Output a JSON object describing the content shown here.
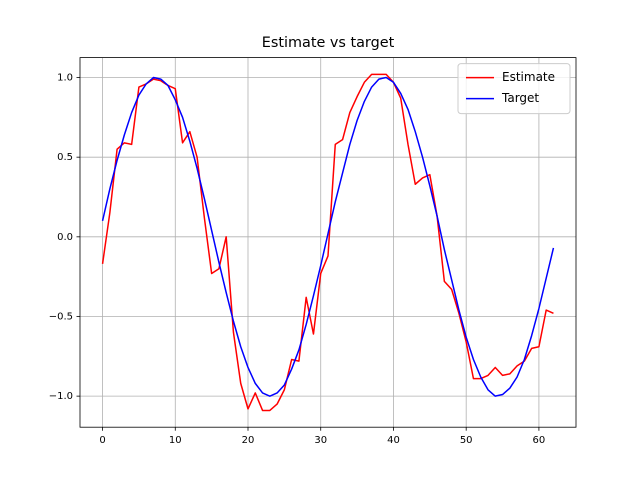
{
  "chart_data": {
    "type": "line",
    "title": "Estimate vs target",
    "x": [
      0,
      1,
      2,
      3,
      4,
      5,
      6,
      7,
      8,
      9,
      10,
      11,
      12,
      13,
      14,
      15,
      16,
      17,
      18,
      19,
      20,
      21,
      22,
      23,
      24,
      25,
      26,
      27,
      28,
      29,
      30,
      31,
      32,
      33,
      34,
      35,
      36,
      37,
      38,
      39,
      40,
      41,
      42,
      43,
      44,
      45,
      46,
      47,
      48,
      49,
      50,
      51,
      52,
      53,
      54,
      55,
      56,
      57,
      58,
      59,
      60,
      61,
      62
    ],
    "series": [
      {
        "name": "Estimate",
        "color": "#ff0000",
        "values": [
          -0.17,
          0.15,
          0.55,
          0.59,
          0.58,
          0.94,
          0.96,
          0.99,
          0.98,
          0.95,
          0.93,
          0.59,
          0.66,
          0.5,
          0.12,
          -0.23,
          -0.2,
          0.0,
          -0.6,
          -0.92,
          -1.08,
          -0.98,
          -1.09,
          -1.09,
          -1.05,
          -0.96,
          -0.77,
          -0.78,
          -0.38,
          -0.61,
          -0.23,
          -0.12,
          0.58,
          0.61,
          0.78,
          0.88,
          0.97,
          1.02,
          1.02,
          1.02,
          0.97,
          0.87,
          0.58,
          0.33,
          0.37,
          0.39,
          0.13,
          -0.28,
          -0.33,
          -0.48,
          -0.66,
          -0.89,
          -0.89,
          -0.87,
          -0.82,
          -0.87,
          -0.86,
          -0.81,
          -0.78,
          -0.7,
          -0.69,
          -0.46,
          -0.48
        ]
      },
      {
        "name": "Target",
        "color": "#0000ff",
        "values": [
          0.1,
          0.3,
          0.48,
          0.64,
          0.78,
          0.89,
          0.96,
          1.0,
          0.99,
          0.95,
          0.86,
          0.75,
          0.6,
          0.43,
          0.24,
          0.04,
          -0.16,
          -0.35,
          -0.53,
          -0.69,
          -0.82,
          -0.92,
          -0.98,
          -1.0,
          -0.98,
          -0.93,
          -0.83,
          -0.71,
          -0.55,
          -0.37,
          -0.18,
          0.02,
          0.22,
          0.4,
          0.58,
          0.73,
          0.85,
          0.94,
          0.99,
          1.0,
          0.97,
          0.9,
          0.8,
          0.66,
          0.5,
          0.32,
          0.13,
          -0.08,
          -0.27,
          -0.46,
          -0.63,
          -0.77,
          -0.88,
          -0.96,
          -1.0,
          -0.99,
          -0.95,
          -0.88,
          -0.77,
          -0.62,
          -0.45,
          -0.26,
          -0.07
        ]
      }
    ],
    "xlim": [
      -3.1,
      65.1
    ],
    "ylim": [
      -1.195,
      1.125
    ],
    "xticks": [
      0,
      10,
      20,
      30,
      40,
      50,
      60
    ],
    "yticks": [
      {
        "value": -1,
        "label": "−1.0"
      },
      {
        "value": -0.5,
        "label": "−0.5"
      },
      {
        "value": 0,
        "label": "0.0"
      },
      0.5,
      {
        "value": 1,
        "label": "1.0"
      }
    ],
    "grid": true,
    "legend": "upper right"
  }
}
